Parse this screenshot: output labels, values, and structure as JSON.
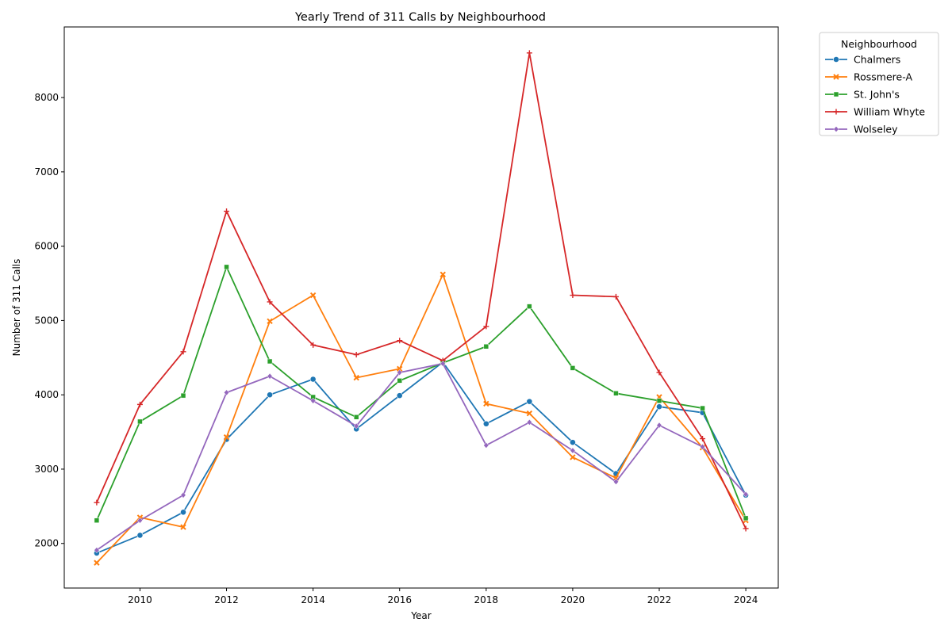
{
  "chart_data": {
    "type": "line",
    "title": "Yearly Trend of 311 Calls by Neighbourhood",
    "xlabel": "Year",
    "ylabel": "Number of 311 Calls",
    "x": [
      2009,
      2010,
      2011,
      2012,
      2013,
      2014,
      2015,
      2016,
      2017,
      2018,
      2019,
      2020,
      2021,
      2022,
      2023,
      2024
    ],
    "xlim": [
      2008.25,
      2024.75
    ],
    "ylim": [
      1400,
      8950
    ],
    "xticks": [
      2010,
      2012,
      2014,
      2016,
      2018,
      2020,
      2022,
      2024
    ],
    "yticks": [
      2000,
      3000,
      4000,
      5000,
      6000,
      7000,
      8000
    ],
    "grid": false,
    "legend": {
      "title": "Neighbourhood",
      "placement": "outside-top-right"
    },
    "series": [
      {
        "name": "Chalmers",
        "color": "#1f77b4",
        "marker": "circle",
        "values": [
          1870,
          2110,
          2420,
          3400,
          4000,
          4210,
          3540,
          3990,
          4440,
          3610,
          3910,
          3360,
          2940,
          3840,
          3760,
          2650
        ]
      },
      {
        "name": "Rossmere-A",
        "color": "#ff7f0e",
        "marker": "x",
        "values": [
          1740,
          2350,
          2220,
          3430,
          4990,
          5340,
          4230,
          4350,
          5620,
          3880,
          3750,
          3160,
          2880,
          3970,
          3290,
          2310
        ]
      },
      {
        "name": "St. John's",
        "color": "#2ca02c",
        "marker": "square",
        "values": [
          2310,
          3640,
          3990,
          5720,
          4450,
          3970,
          3700,
          4190,
          4430,
          4650,
          5190,
          4360,
          4020,
          3920,
          3820,
          2340
        ]
      },
      {
        "name": "William Whyte",
        "color": "#d62728",
        "marker": "plus",
        "values": [
          2550,
          3870,
          4580,
          6470,
          5250,
          4670,
          4540,
          4730,
          4460,
          4920,
          8600,
          5340,
          5320,
          4300,
          3410,
          2200
        ]
      },
      {
        "name": "Wolseley",
        "color": "#9467bd",
        "marker": "diamond",
        "values": [
          1910,
          2310,
          2650,
          4030,
          4250,
          3920,
          3580,
          4300,
          4420,
          3320,
          3630,
          3250,
          2830,
          3590,
          3300,
          2660
        ]
      }
    ]
  }
}
